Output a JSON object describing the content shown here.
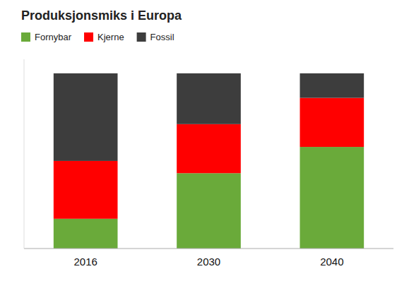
{
  "chart_data": {
    "type": "bar",
    "title": "Produksjonsmiks i Europa",
    "categories": [
      "2016",
      "2030",
      "2040"
    ],
    "series": [
      {
        "name": "Fornybar",
        "color": "#6aaa3a",
        "values": [
          17,
          43,
          58
        ]
      },
      {
        "name": "Kjerne",
        "color": "#ff0000",
        "values": [
          33,
          28,
          28
        ]
      },
      {
        "name": "Fossil",
        "color": "#3d3d3d",
        "values": [
          50,
          29,
          14
        ]
      }
    ],
    "stacked": true,
    "ylim": [
      0,
      108
    ],
    "grid": false,
    "legend": "upper left",
    "tick_labels": "x"
  }
}
